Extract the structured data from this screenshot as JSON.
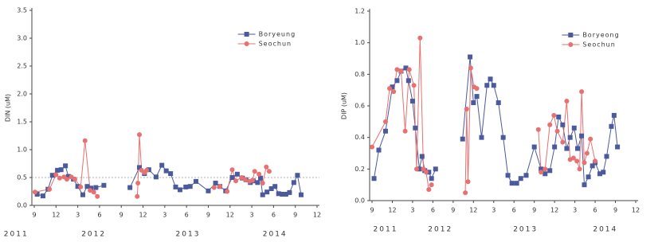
{
  "chart_data": [
    {
      "type": "line",
      "ylabel": "DIN (uM)",
      "xlim": [
        0,
        39
      ],
      "ylim": [
        0,
        3.5
      ],
      "xticks": [
        {
          "value": 0,
          "label": "9"
        },
        {
          "value": 3,
          "label": "12"
        },
        {
          "value": 6,
          "label": "3"
        },
        {
          "value": 9,
          "label": "6"
        },
        {
          "value": 12,
          "label": "9"
        },
        {
          "value": 15,
          "label": "12"
        },
        {
          "value": 18,
          "label": "3"
        },
        {
          "value": 21,
          "label": "6"
        },
        {
          "value": 24,
          "label": "9"
        },
        {
          "value": 27,
          "label": "12"
        },
        {
          "value": 30,
          "label": "3"
        },
        {
          "value": 33,
          "label": "6"
        },
        {
          "value": 36,
          "label": "9"
        },
        {
          "value": 39,
          "label": "12"
        }
      ],
      "yticks": [
        {
          "value": 0,
          "label": "0.0"
        },
        0.5,
        {
          "value": 1,
          "label": "1.0"
        },
        1.5,
        {
          "value": 2,
          "label": "2.0"
        },
        2.5,
        {
          "value": 3,
          "label": "3.0"
        },
        3.5
      ],
      "year_labels": [
        {
          "value": -2.5,
          "label": "2011"
        },
        {
          "value": 8.2,
          "label": "2012"
        },
        {
          "value": 21.2,
          "label": "2013"
        },
        {
          "value": 33.2,
          "label": "2014"
        }
      ],
      "reference_line": 0.5,
      "legend": "upper right",
      "series": [
        {
          "name": "Boryeung",
          "color": "#4a5a9c",
          "marker": "square",
          "x": [
            0.4,
            1.2,
            1.9,
            2.5,
            3.2,
            3.7,
            4.3,
            4.7,
            5.4,
            6,
            6.7,
            7.3,
            7.8,
            8.5,
            9.6,
            null,
            13.2,
            14.5,
            15.2,
            15.8,
            16.8,
            17.6,
            18.2,
            18.8,
            19.5,
            20.1,
            20.9,
            21.5,
            22.3,
            24,
            25,
            25.6,
            26.4,
            27.3,
            28,
            28.7,
            29.2,
            29.8,
            30.2,
            30.8,
            31.2,
            31.5,
            32.1,
            32.7,
            33.2,
            33.7,
            34.2,
            34.7,
            35.2,
            35.8,
            36.3,
            36.8
          ],
          "values": [
            0.2,
            0.17,
            0.29,
            0.54,
            0.63,
            0.64,
            0.71,
            0.52,
            0.47,
            0.34,
            0.19,
            0.34,
            0.31,
            0.32,
            0.36,
            null,
            0.32,
            0.68,
            0.57,
            0.64,
            0.51,
            0.72,
            0.62,
            0.57,
            0.33,
            0.28,
            0.33,
            0.34,
            0.43,
            0.26,
            0.4,
            0.34,
            0.26,
            0.5,
            0.56,
            0.49,
            0.46,
            0.41,
            0.44,
            0.41,
            0.49,
            0.19,
            0.24,
            0.3,
            0.34,
            0.21,
            0.2,
            0.2,
            0.23,
            0.41,
            0.54,
            0.19
          ]
        },
        {
          "name": "Seochun",
          "color": "#e87070",
          "marker": "circle",
          "x": [
            0.1,
            2.1,
            3,
            3.5,
            4.1,
            4.5,
            5.1,
            5.6,
            6.4,
            7,
            7.7,
            8.2,
            8.7,
            null,
            14.2,
            14.3,
            14.5,
            14.8,
            15.2,
            15.5,
            null,
            24.8,
            25.6,
            26.6,
            27.3,
            27.8,
            28.6,
            29.1,
            29.7,
            30.1,
            30.4,
            31,
            31.5,
            32,
            32.4
          ],
          "values": [
            0.24,
            0.29,
            0.55,
            0.49,
            0.51,
            0.47,
            0.51,
            0.47,
            0.33,
            1.16,
            0.27,
            0.24,
            0.16,
            null,
            0.16,
            0.4,
            1.27,
            0.63,
            0.59,
            0.63,
            null,
            0.32,
            0.34,
            0.25,
            0.64,
            0.44,
            0.5,
            0.46,
            0.43,
            0.45,
            0.61,
            0.56,
            0.4,
            0.69,
            0.61
          ]
        }
      ]
    },
    {
      "type": "line",
      "ylabel": "DIP (uM)",
      "xlim": [
        0,
        39
      ],
      "ylim": [
        0,
        1.2
      ],
      "xticks": [
        {
          "value": 0,
          "label": "9"
        },
        {
          "value": 3,
          "label": "12"
        },
        {
          "value": 6,
          "label": "3"
        },
        {
          "value": 9,
          "label": "6"
        },
        {
          "value": 12,
          "label": "9"
        },
        {
          "value": 15,
          "label": "12"
        },
        {
          "value": 18,
          "label": "3"
        },
        {
          "value": 21,
          "label": "6"
        },
        {
          "value": 24,
          "label": "9"
        },
        {
          "value": 27,
          "label": "12"
        },
        {
          "value": 30,
          "label": "3"
        },
        {
          "value": 33,
          "label": "6"
        },
        {
          "value": 36,
          "label": "9"
        },
        {
          "value": 39,
          "label": "12"
        }
      ],
      "yticks": [
        {
          "value": 0,
          "label": "0.0"
        },
        0.2,
        0.4,
        0.6,
        0.8,
        {
          "value": 1,
          "label": "1.0"
        },
        1.2
      ],
      "year_labels": [
        {
          "value": 2,
          "label": "2011"
        },
        {
          "value": 10.1,
          "label": "2012"
        },
        {
          "value": 22.7,
          "label": "2013"
        },
        {
          "value": 34.5,
          "label": "2014"
        }
      ],
      "legend": "upper right",
      "series": [
        {
          "name": "Boryeong",
          "color": "#4a5a9c",
          "marker": "square",
          "x": [
            0.3,
            1,
            2,
            3,
            3.7,
            4.3,
            5,
            5.4,
            6,
            6.4,
            7,
            7.4,
            7.8,
            8.4,
            8.8,
            9.4,
            null,
            13.4,
            14.5,
            15,
            15.5,
            16.2,
            17,
            17.5,
            18,
            18.7,
            19.4,
            20.1,
            20.7,
            21.4,
            22,
            22.8,
            24,
            25,
            25.6,
            26.3,
            27,
            27.6,
            28.2,
            28.8,
            29.3,
            29.9,
            30.4,
            31,
            31.4,
            32,
            32.6,
            33,
            33.7,
            34.2,
            34.7,
            35.4,
            35.8,
            36.3
          ],
          "values": [
            0.14,
            0.32,
            0.44,
            0.72,
            0.76,
            0.82,
            0.84,
            0.76,
            0.63,
            0.46,
            0.2,
            0.28,
            0.19,
            0.18,
            0.14,
            0.2,
            null,
            0.39,
            0.91,
            0.62,
            0.66,
            0.4,
            0.73,
            0.77,
            0.73,
            0.62,
            0.4,
            0.16,
            0.11,
            0.11,
            0.14,
            0.16,
            0.34,
            0.2,
            0.17,
            0.19,
            0.34,
            0.53,
            0.48,
            0.33,
            0.4,
            0.46,
            0.33,
            0.41,
            0.1,
            0.15,
            0.22,
            0.24,
            0.17,
            0.18,
            0.28,
            0.47,
            0.54,
            0.34
          ]
        },
        {
          "name": "Seochun",
          "color": "#e87070",
          "marker": "circle",
          "x": [
            0,
            2,
            2.6,
            3.2,
            3.7,
            4.3,
            4.9,
            5.5,
            6.2,
            6.6,
            7.1,
            7.6,
            8,
            8.4,
            8.8,
            null,
            13.8,
            14,
            14.2,
            14.6,
            15.1,
            15.5,
            null,
            24.6,
            25,
            25.6,
            26.3,
            26.9,
            27.4,
            28.2,
            28.8,
            29.3,
            29.8,
            30.3,
            30.7,
            31,
            31.4,
            31.8,
            32.3,
            33
          ],
          "values": [
            0.34,
            0.5,
            0.71,
            0.69,
            0.83,
            0.82,
            0.44,
            0.83,
            0.73,
            0.2,
            1.03,
            0.2,
            0.18,
            0.07,
            0.1,
            null,
            0.05,
            0.58,
            0.12,
            0.84,
            0.72,
            0.71,
            null,
            0.45,
            0.18,
            0.2,
            0.48,
            0.54,
            0.44,
            0.37,
            0.63,
            0.26,
            0.27,
            0.25,
            0.2,
            0.69,
            0.24,
            0.3,
            0.39,
            0.25
          ]
        }
      ]
    }
  ]
}
